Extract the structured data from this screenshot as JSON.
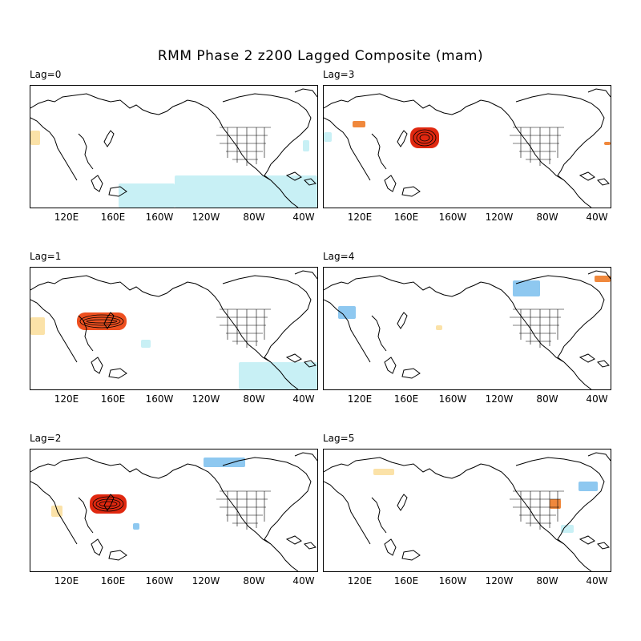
{
  "title": "RMM Phase 2 z200 Lagged Composite (mam)",
  "longitude_ticks": [
    "120E",
    "160E",
    "160W",
    "120W",
    "80W",
    "40W"
  ],
  "colors": {
    "land_outline": "#000000",
    "light_blue": "#c8f0f5",
    "medium_blue": "#8ec8f0",
    "blue": "#5aa0e6",
    "light_orange": "#fbe2a8",
    "orange": "#f0883c",
    "red_orange": "#ee5020",
    "red": "#e02810"
  },
  "panels": [
    {
      "id": "lag0",
      "label": "Lag=0",
      "anomalies": [
        {
          "tone": "light_blue",
          "region": "tropical-east-pacific-and-atlantic"
        },
        {
          "tone": "light_orange",
          "region": "central-asia"
        }
      ]
    },
    {
      "id": "lag3",
      "label": "Lag=3",
      "anomalies": [
        {
          "tone": "red",
          "region": "north-pacific-east-of-japan"
        },
        {
          "tone": "orange",
          "region": "eastern-siberia"
        },
        {
          "tone": "light_blue",
          "region": "far-west-asia"
        }
      ]
    },
    {
      "id": "lag1",
      "label": "Lag=1",
      "anomalies": [
        {
          "tone": "red_orange",
          "region": "japan-and-kuril"
        },
        {
          "tone": "light_orange",
          "region": "central-asia"
        },
        {
          "tone": "light_blue",
          "region": "tropical-pacific-and-atlantic"
        }
      ]
    },
    {
      "id": "lag4",
      "label": "Lag=4",
      "anomalies": [
        {
          "tone": "medium_blue",
          "region": "central-asia"
        },
        {
          "tone": "medium_blue",
          "region": "hudson-bay"
        },
        {
          "tone": "orange",
          "region": "greenland"
        }
      ]
    },
    {
      "id": "lag2",
      "label": "Lag=2",
      "anomalies": [
        {
          "tone": "red",
          "region": "east-of-japan"
        },
        {
          "tone": "medium_blue",
          "region": "canadian-arctic"
        },
        {
          "tone": "light_orange",
          "region": "china"
        }
      ]
    },
    {
      "id": "lag5",
      "label": "Lag=5",
      "anomalies": [
        {
          "tone": "orange",
          "region": "us-east-coast"
        },
        {
          "tone": "medium_blue",
          "region": "north-atlantic"
        },
        {
          "tone": "light_orange",
          "region": "siberia"
        }
      ]
    }
  ]
}
